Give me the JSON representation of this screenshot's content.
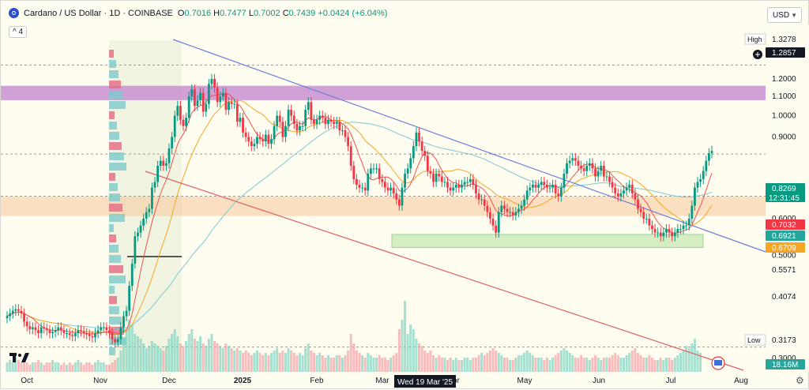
{
  "header": {
    "title": "Cardano / US Dollar · 1D · COINBASE",
    "open_label": "O",
    "open": "0.7016",
    "high_label": "H",
    "high": "0.7477",
    "low_label": "L",
    "low": "0.7002",
    "close_label": "C",
    "close": "0.7439",
    "change": "+0.0424 (+6.04%)",
    "indicator_badge": "4"
  },
  "currency": "USD",
  "colors": {
    "background": "#fefdf0",
    "up": "#089981",
    "down": "#f23645",
    "resistance_zone": "#c98fd1",
    "support_zone": "#b4e0a0",
    "trend_line_upper": "#6f7fd8",
    "trend_line_lower": "#e06060",
    "ma_short": "#ef5350",
    "ma_mid": "#f5a623",
    "ma_long": "#7ec8d6",
    "current_price": "#089981"
  },
  "chart_data": {
    "type": "candlestick",
    "xlabel": "",
    "ylabel": "",
    "ylim": [
      0.28,
      1.45
    ],
    "y_scale": "log",
    "grid": false,
    "x_ticks": [
      "Oct",
      "Nov",
      "Dec",
      "2025",
      "Feb",
      "Mar",
      "Apr",
      "May",
      "Jun",
      "Jul",
      "Aug"
    ],
    "y_ticks": [
      "1.2000",
      "1.1000",
      "1.0000",
      "0.9000",
      "0.6000",
      "0.5000",
      "0.4074",
      "0.3000"
    ],
    "price_markers": [
      {
        "label": "High",
        "value": "1.3278",
        "style": "plain"
      },
      {
        "label": "",
        "value": "1.2857",
        "style": "dark"
      },
      {
        "label": "",
        "value": "0.8269",
        "style": "green",
        "sub": "12:31:45"
      },
      {
        "label": "",
        "value": "0.7032",
        "style": "red"
      },
      {
        "label": "",
        "value": "0.6921",
        "style": "teal"
      },
      {
        "label": "",
        "value": "0.6709",
        "style": "orange"
      },
      {
        "label": "",
        "value": "0.5571",
        "style": "plain"
      },
      {
        "label": "Low",
        "value": "0.3173",
        "style": "plain"
      },
      {
        "label": "",
        "value": "18.16M",
        "style": "teal"
      }
    ],
    "crosshair_label": "Wed 19 Mar '25",
    "zones": [
      {
        "name": "resistance",
        "low": 1.08,
        "high": 1.16
      },
      {
        "name": "range",
        "low": 0.608,
        "high": 0.67
      },
      {
        "name": "support",
        "low": 0.52,
        "high": 0.555
      }
    ],
    "closes": [
      0.37,
      0.375,
      0.38,
      0.383,
      0.38,
      0.375,
      0.36,
      0.352,
      0.347,
      0.35,
      0.345,
      0.34,
      0.35,
      0.348,
      0.345,
      0.34,
      0.342,
      0.345,
      0.35,
      0.345,
      0.34,
      0.34,
      0.337,
      0.335,
      0.34,
      0.345,
      0.343,
      0.34,
      0.338,
      0.335,
      0.333,
      0.34,
      0.345,
      0.35,
      0.35,
      0.345,
      0.34,
      0.33,
      0.325,
      0.33,
      0.35,
      0.37,
      0.38,
      0.43,
      0.48,
      0.55,
      0.56,
      0.58,
      0.6,
      0.62,
      0.63,
      0.7,
      0.72,
      0.78,
      0.8,
      0.78,
      0.79,
      0.85,
      0.9,
      1.0,
      1.05,
      0.98,
      0.95,
      0.99,
      1.1,
      1.14,
      1.05,
      1.08,
      1.12,
      1.02,
      1.06,
      1.17,
      1.2,
      1.15,
      1.07,
      1.1,
      1.12,
      1.03,
      1.07,
      1.06,
      1.06,
      0.97,
      0.99,
      0.92,
      0.9,
      0.88,
      0.86,
      0.87,
      0.9,
      0.89,
      0.88,
      0.91,
      0.87,
      0.89,
      0.95,
      1.0,
      0.97,
      0.9,
      0.95,
      1.03,
      1.0,
      0.96,
      0.93,
      0.95,
      0.95,
      1.03,
      1.07,
      0.98,
      0.96,
      0.98,
      1.0,
      0.99,
      0.96,
      0.98,
      0.97,
      0.96,
      0.97,
      0.93,
      0.93,
      0.9,
      0.86,
      0.78,
      0.73,
      0.71,
      0.7,
      0.7,
      0.69,
      0.75,
      0.77,
      0.77,
      0.77,
      0.73,
      0.72,
      0.7,
      0.69,
      0.7,
      0.68,
      0.66,
      0.64,
      0.7,
      0.75,
      0.77,
      0.81,
      0.86,
      0.92,
      0.88,
      0.84,
      0.82,
      0.76,
      0.75,
      0.72,
      0.75,
      0.74,
      0.72,
      0.72,
      0.7,
      0.69,
      0.7,
      0.71,
      0.7,
      0.71,
      0.72,
      0.72,
      0.73,
      0.71,
      0.68,
      0.66,
      0.66,
      0.64,
      0.62,
      0.6,
      0.58,
      0.56,
      0.62,
      0.64,
      0.63,
      0.62,
      0.62,
      0.61,
      0.62,
      0.63,
      0.64,
      0.66,
      0.69,
      0.7,
      0.71,
      0.7,
      0.71,
      0.72,
      0.71,
      0.7,
      0.7,
      0.71,
      0.68,
      0.67,
      0.7,
      0.75,
      0.79,
      0.8,
      0.81,
      0.8,
      0.78,
      0.77,
      0.76,
      0.78,
      0.79,
      0.77,
      0.74,
      0.76,
      0.78,
      0.74,
      0.74,
      0.72,
      0.7,
      0.68,
      0.67,
      0.68,
      0.69,
      0.7,
      0.71,
      0.68,
      0.66,
      0.63,
      0.62,
      0.6,
      0.6,
      0.58,
      0.57,
      0.56,
      0.56,
      0.55,
      0.56,
      0.57,
      0.56,
      0.55,
      0.56,
      0.57,
      0.57,
      0.58,
      0.58,
      0.6,
      0.64,
      0.7,
      0.72,
      0.73,
      0.76,
      0.8,
      0.83,
      0.84
    ],
    "volumes": [
      4,
      5,
      4,
      6,
      5,
      4,
      5,
      4,
      3,
      4,
      4,
      5,
      4,
      3,
      4,
      4,
      5,
      4,
      4,
      3,
      4,
      3,
      4,
      3,
      4,
      5,
      4,
      3,
      4,
      4,
      3,
      4,
      5,
      4,
      4,
      3,
      3,
      4,
      5,
      6,
      9,
      14,
      18,
      22,
      20,
      16,
      15,
      14,
      12,
      10,
      11,
      13,
      12,
      11,
      10,
      9,
      11,
      14,
      16,
      18,
      15,
      12,
      11,
      13,
      16,
      18,
      14,
      13,
      15,
      12,
      11,
      14,
      16,
      13,
      12,
      11,
      10,
      12,
      11,
      10,
      9,
      10,
      9,
      8,
      9,
      8,
      7,
      8,
      9,
      8,
      7,
      8,
      7,
      8,
      9,
      10,
      8,
      9,
      8,
      10,
      9,
      8,
      7,
      8,
      7,
      10,
      12,
      9,
      8,
      7,
      8,
      7,
      6,
      7,
      6,
      6,
      7,
      7,
      6,
      7,
      9,
      16,
      12,
      9,
      8,
      7,
      6,
      8,
      7,
      6,
      6,
      7,
      6,
      6,
      5,
      6,
      7,
      8,
      18,
      22,
      30,
      16,
      20,
      18,
      14,
      12,
      11,
      9,
      8,
      9,
      7,
      6,
      7,
      6,
      6,
      5,
      6,
      5,
      6,
      5,
      5,
      6,
      6,
      5,
      6,
      6,
      7,
      8,
      7,
      8,
      9,
      10,
      9,
      8,
      7,
      6,
      6,
      5,
      5,
      6,
      7,
      7,
      8,
      9,
      8,
      7,
      6,
      6,
      6,
      5,
      6,
      5,
      6,
      7,
      8,
      9,
      10,
      9,
      8,
      7,
      6,
      6,
      7,
      6,
      6,
      5,
      6,
      7,
      6,
      5,
      6,
      6,
      6,
      7,
      8,
      7,
      6,
      6,
      7,
      8,
      9,
      10,
      8,
      7,
      6,
      6,
      7,
      6,
      5,
      5,
      6,
      5,
      6,
      6,
      5,
      6,
      7,
      8,
      9,
      11,
      10,
      12,
      14,
      9,
      8
    ]
  }
}
